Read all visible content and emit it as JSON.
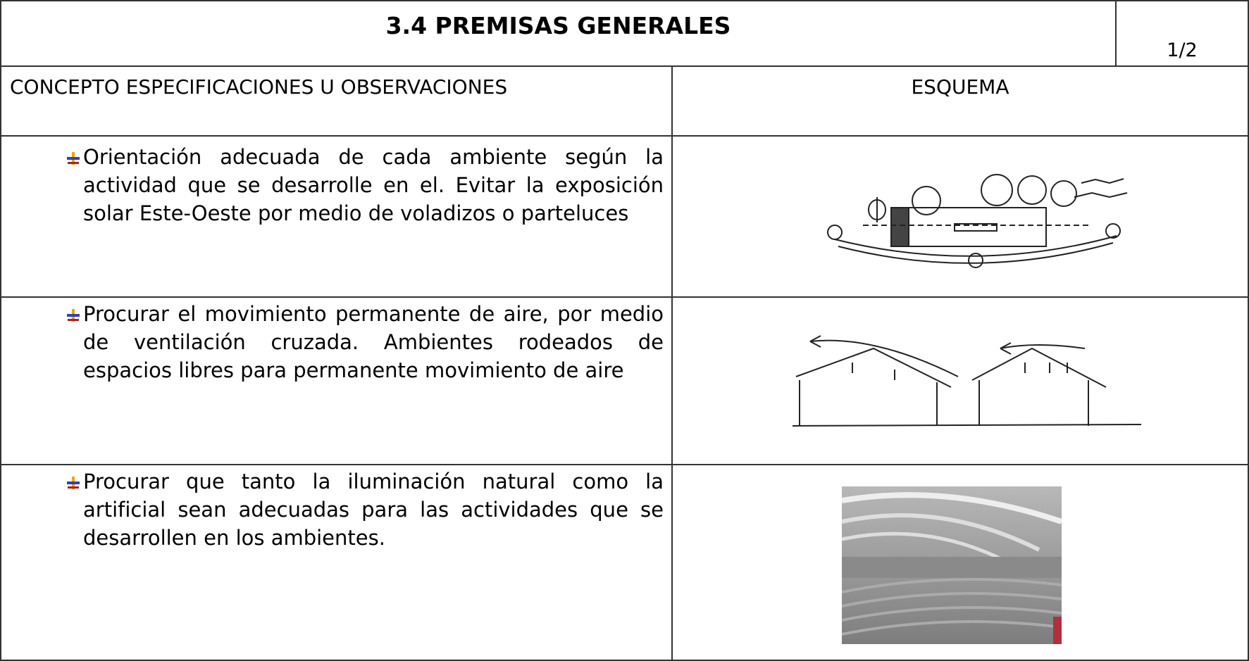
{
  "header": {
    "title": "3.4 PREMISAS GENERALES",
    "page": "1/2"
  },
  "table": {
    "headers": [
      "CONCEPTO ESPECIFICACIONES U OBSERVACIONES",
      "ESQUEMA"
    ],
    "rows": [
      "Orientación adecuada de cada ambiente según la actividad que se desarrolle en el. Evitar la exposición solar Este-Oeste por medio de voladizos o parteluces",
      "Procurar el movimiento permanente de aire, por medio de ventilación cruzada. Ambientes rodeados de espacios libres para permanente movimiento de aire",
      "Procurar que tanto la iluminación natural como la artificial sean adecuadas para las actividades que se desarrollen en los ambientes."
    ]
  }
}
